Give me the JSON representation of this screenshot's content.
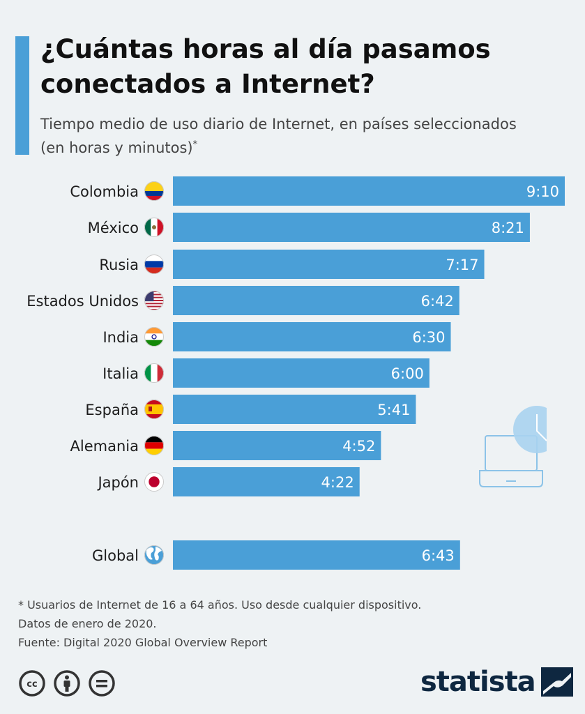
{
  "header": {
    "title": "¿Cuántas horas al día pasamos conectados a Internet?",
    "subtitle": "Tiempo medio de uso diario de Internet, en países seleccionados (en horas y minutos)",
    "subtitle_marker": "*"
  },
  "chart_data": {
    "type": "bar",
    "orientation": "horizontal",
    "title": "¿Cuántas horas al día pasamos conectados a Internet?",
    "xlabel": "",
    "ylabel": "",
    "unit": "minutes",
    "xlim": [
      0,
      550
    ],
    "categories": [
      "Colombia",
      "México",
      "Rusia",
      "Estados Unidos",
      "India",
      "Italia",
      "España",
      "Alemania",
      "Japón",
      "Global"
    ],
    "values": [
      550,
      501,
      437,
      402,
      390,
      360,
      341,
      292,
      262,
      403
    ],
    "labels": [
      "9:10",
      "8:21",
      "7:17",
      "6:42",
      "6:30",
      "6:00",
      "5:41",
      "4:52",
      "4:22",
      "6:43"
    ],
    "flags": [
      "flag-colombia",
      "flag-mexico",
      "flag-russia",
      "flag-usa",
      "flag-india",
      "flag-italy",
      "flag-spain",
      "flag-germany",
      "flag-japan",
      "globe-icon"
    ],
    "bar_color": "#4a9fd7",
    "grid": false
  },
  "footnote": {
    "line1": "* Usuarios de Internet de 16 a 64 años. Uso desde cualquier dispositivo.",
    "line2": "Datos de enero de 2020.",
    "source": "Fuente: Digital 2020 Global Overview Report"
  },
  "license_icons": [
    "cc-icon",
    "by-icon",
    "nd-icon"
  ],
  "logo": {
    "text": "statista"
  },
  "colors": {
    "accent": "#4a9fd7",
    "background": "#eef2f4",
    "logo": "#0e2740"
  }
}
